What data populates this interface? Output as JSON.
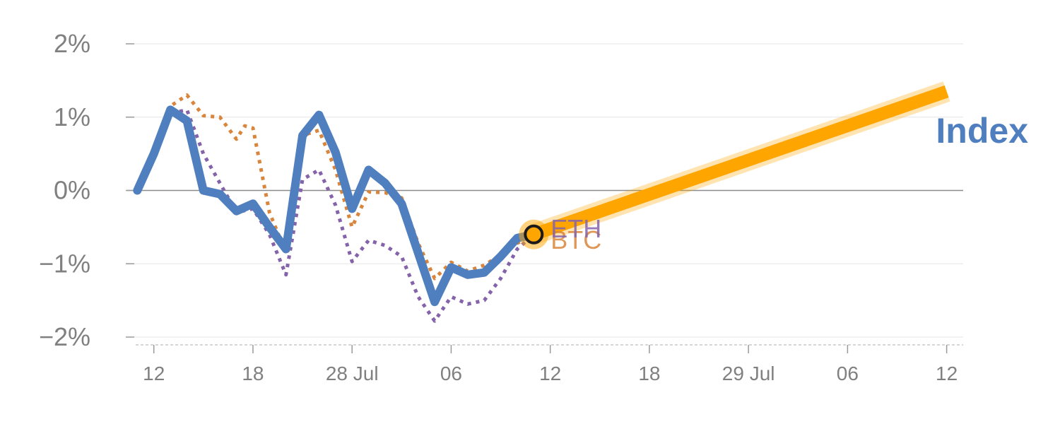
{
  "chart_data": {
    "type": "line",
    "title": "",
    "xlabel": "",
    "ylabel": "",
    "ylim": [
      -2,
      2
    ],
    "y_ticks": [
      {
        "value": 2,
        "label": "2%"
      },
      {
        "value": 1,
        "label": "1%"
      },
      {
        "value": 0,
        "label": "0%"
      },
      {
        "value": -1,
        "label": "−1%"
      },
      {
        "value": -2,
        "label": "−2%"
      }
    ],
    "x_ticks": [
      {
        "value": 12,
        "label": "12"
      },
      {
        "value": 18,
        "label": "18"
      },
      {
        "value": 24,
        "label": "28 Jul"
      },
      {
        "value": 30,
        "label": "06"
      },
      {
        "value": 36,
        "label": "12"
      },
      {
        "value": 42,
        "label": "18"
      },
      {
        "value": 48,
        "label": "29 Jul"
      },
      {
        "value": 54,
        "label": "06"
      },
      {
        "value": 60,
        "label": "12"
      }
    ],
    "xlim": [
      10.9,
      61
    ],
    "grid": true,
    "series": [
      {
        "name": "Index",
        "color": "#4f7fbf",
        "style": "solid",
        "x": [
          11,
          12,
          13,
          14,
          15,
          16,
          17,
          18,
          19,
          20,
          21,
          22,
          23,
          24,
          25,
          26,
          27,
          28,
          29,
          30,
          31,
          32,
          33,
          34,
          35
        ],
        "values": [
          0.0,
          0.5,
          1.1,
          0.95,
          0.0,
          -0.05,
          -0.28,
          -0.18,
          -0.5,
          -0.8,
          0.75,
          1.03,
          0.52,
          -0.25,
          0.28,
          0.1,
          -0.18,
          -0.85,
          -1.52,
          -1.05,
          -1.15,
          -1.12,
          -0.9,
          -0.65,
          -0.6
        ]
      },
      {
        "name": "BTC",
        "color": "#d9853b",
        "style": "dotted",
        "x": [
          11,
          12,
          13,
          14,
          15,
          16,
          17,
          17.5,
          18,
          19,
          20,
          21,
          22,
          23,
          24,
          25,
          26,
          27,
          28,
          29,
          30,
          31,
          32,
          33,
          34,
          35
        ],
        "values": [
          0.0,
          0.55,
          1.15,
          1.3,
          1.02,
          1.0,
          0.7,
          0.88,
          0.85,
          -0.3,
          -0.85,
          0.75,
          0.82,
          0.28,
          -0.5,
          -0.02,
          -0.03,
          -0.1,
          -0.72,
          -1.2,
          -0.98,
          -1.1,
          -1.02,
          -0.88,
          -0.72,
          -0.6
        ]
      },
      {
        "name": "ETH",
        "color": "#8563aa",
        "style": "dotted",
        "x": [
          11,
          12,
          13,
          14,
          15,
          16,
          17,
          18,
          19,
          20,
          21,
          22,
          23,
          24,
          25,
          26,
          27,
          28,
          29,
          30,
          31,
          32,
          33,
          34,
          35
        ],
        "values": [
          0.0,
          0.45,
          1.05,
          1.1,
          0.5,
          0.1,
          -0.3,
          -0.25,
          -0.6,
          -1.15,
          0.15,
          0.28,
          -0.2,
          -0.97,
          -0.68,
          -0.75,
          -0.9,
          -1.45,
          -1.78,
          -1.45,
          -1.55,
          -1.5,
          -1.2,
          -0.8,
          -0.6
        ]
      }
    ],
    "projection": {
      "color": "#ffa500",
      "x": [
        35,
        60
      ],
      "values": [
        -0.6,
        1.35
      ]
    },
    "end_marker": {
      "x": 35,
      "value": -0.6
    },
    "labels": {
      "index": "Index",
      "btc": "BTC",
      "eth": "ETH"
    }
  }
}
